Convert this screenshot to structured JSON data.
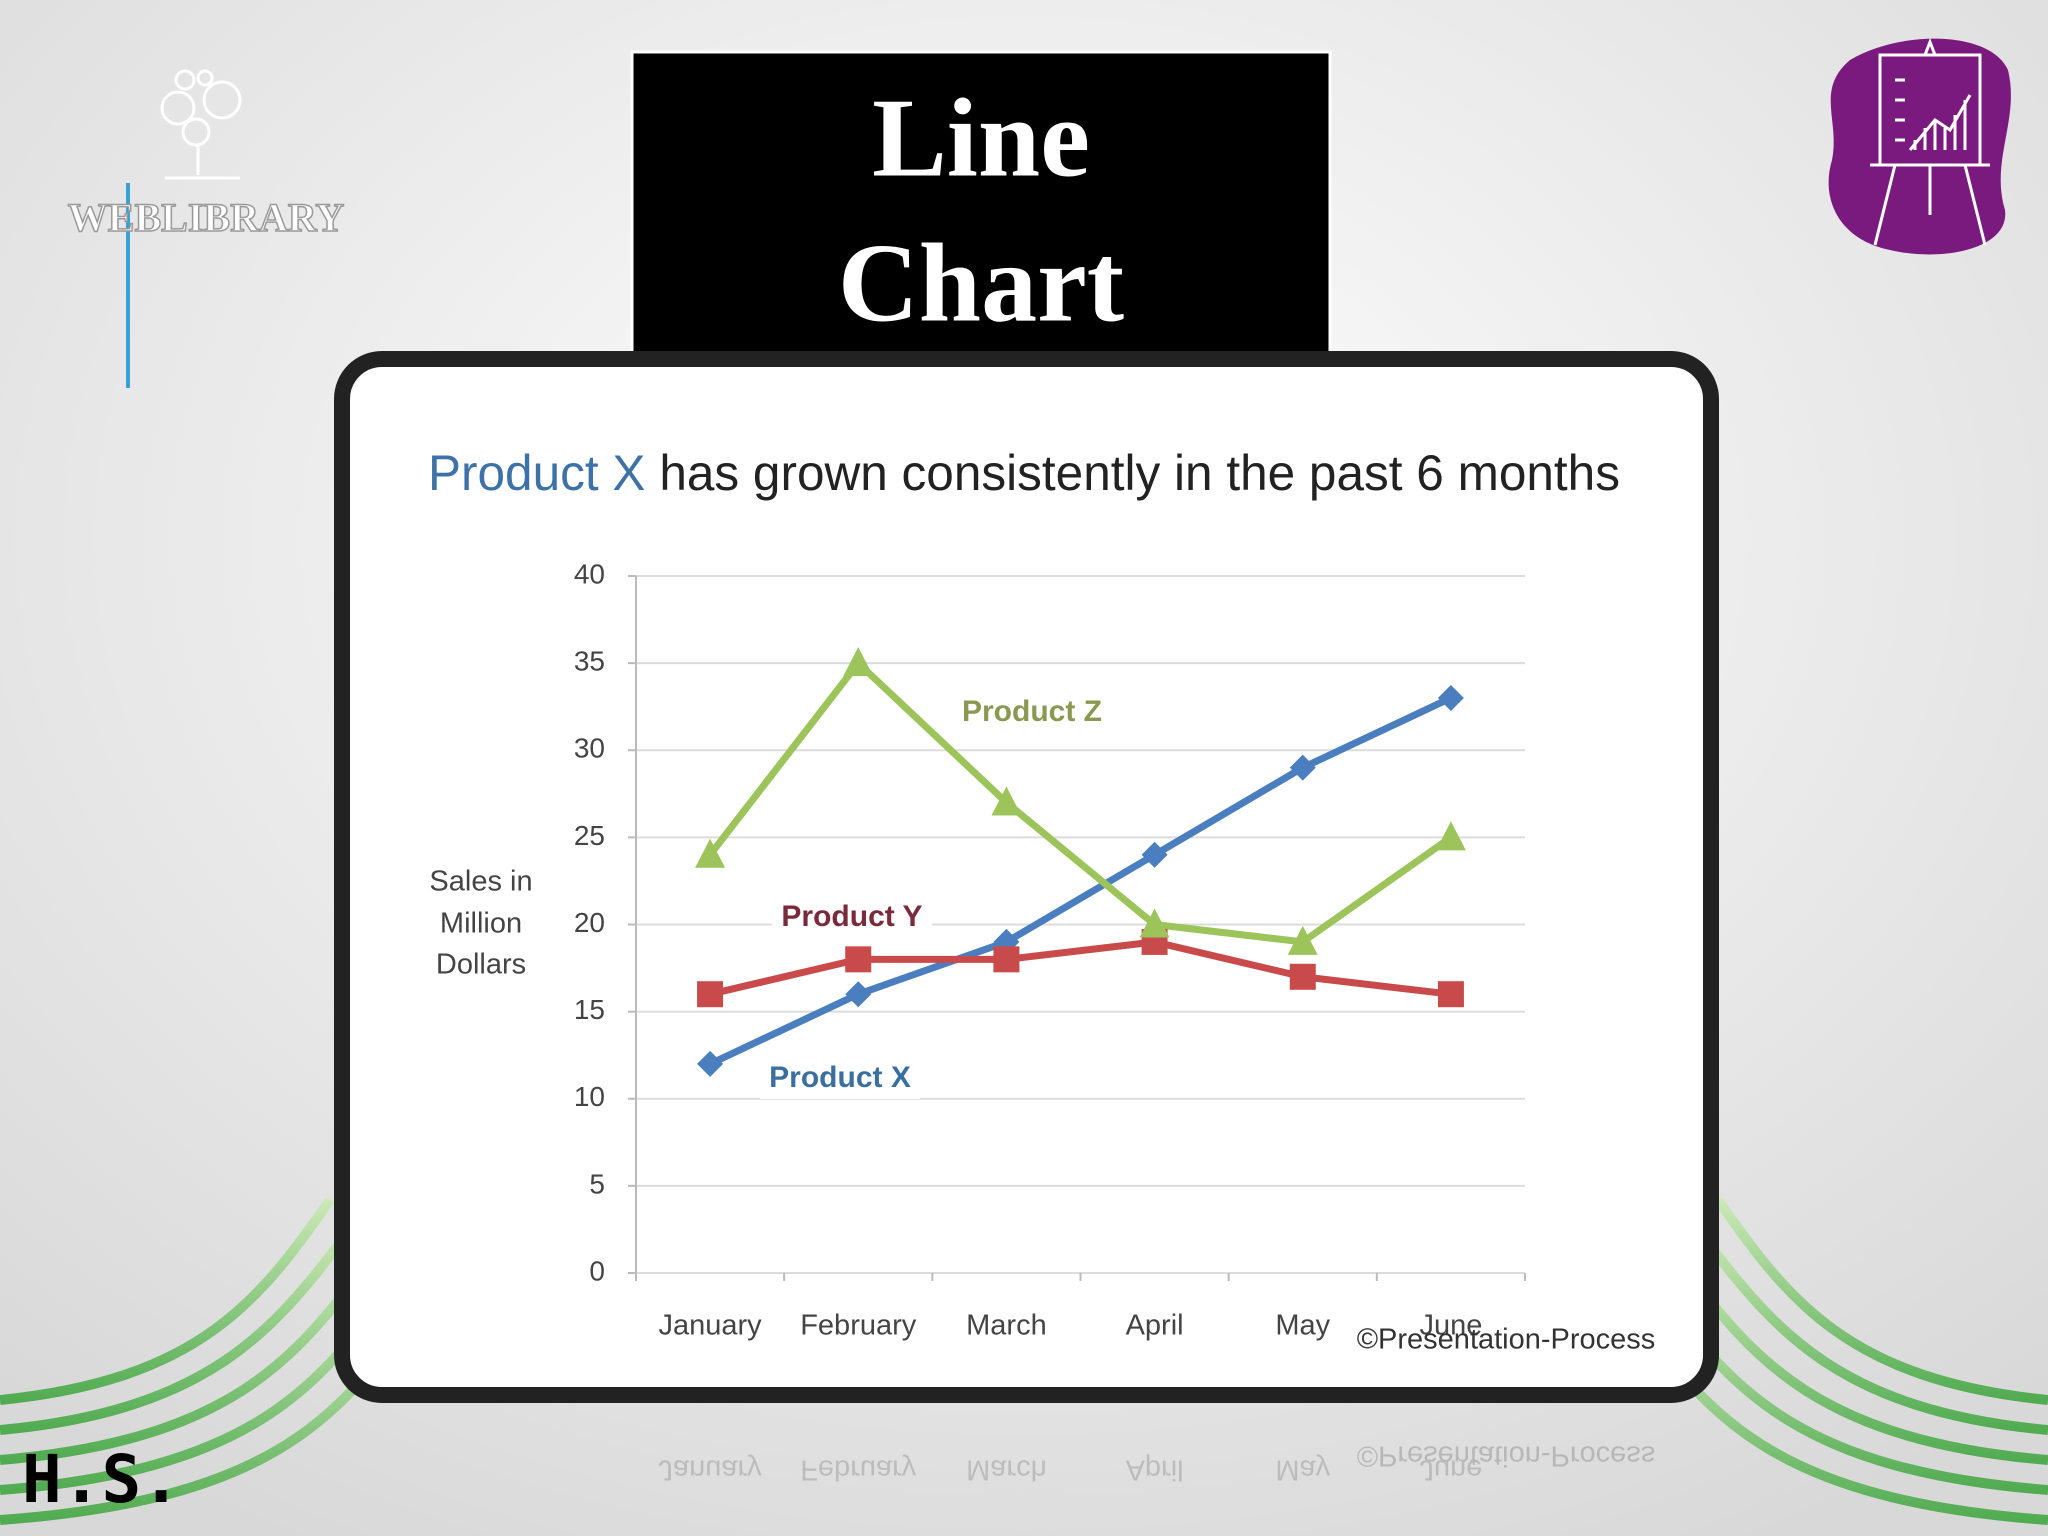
{
  "header": {
    "logo": "WEBLIBRARY",
    "title": [
      "Line",
      "Chart"
    ],
    "signature": "H.S."
  },
  "chart_data": {
    "type": "line",
    "title": [
      "Product X",
      "has grown consistently in the past 6 months"
    ],
    "y_label": [
      "Sales in",
      "Million",
      "Dollars"
    ],
    "categories": [
      "January",
      "February",
      "March",
      "April",
      "May",
      "June"
    ],
    "series": [
      {
        "name": "Product X",
        "color": "#4a7ebf",
        "marker": "diamond",
        "values": [
          12,
          16,
          19,
          24,
          29,
          33
        ]
      },
      {
        "name": "Product Y",
        "color": "#c94a4a",
        "marker": "square",
        "values": [
          16,
          18,
          18,
          19,
          17,
          16
        ]
      },
      {
        "name": "Product Z",
        "color": "#9cc45a",
        "marker": "triangle",
        "values": [
          24,
          35,
          27,
          20,
          19,
          25
        ]
      }
    ],
    "ylim": [
      0,
      40
    ],
    "yticks": [
      0,
      5,
      10,
      15,
      20,
      25,
      30,
      35,
      40
    ],
    "grid": true,
    "source": "©Presentation-Process"
  }
}
